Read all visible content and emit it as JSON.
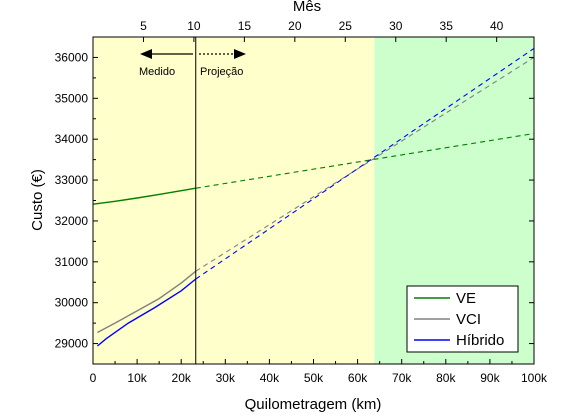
{
  "chart_data": {
    "type": "line",
    "xlabel": "Quilometragem (km)",
    "ylabel": "Custo (€)",
    "x2label": "Mês",
    "xlim": [
      0,
      100000
    ],
    "ylim": [
      28500,
      36500
    ],
    "x2lim": [
      0,
      43.7
    ],
    "xticks": [
      {
        "value": 0,
        "label": "0"
      },
      {
        "value": 10000,
        "label": "10k"
      },
      {
        "value": 20000,
        "label": "20k"
      },
      {
        "value": 30000,
        "label": "30k"
      },
      {
        "value": 40000,
        "label": "40k"
      },
      {
        "value": 50000,
        "label": "50k"
      },
      {
        "value": 60000,
        "label": "60k"
      },
      {
        "value": 70000,
        "label": "70k"
      },
      {
        "value": 80000,
        "label": "80k"
      },
      {
        "value": 90000,
        "label": "90k"
      },
      {
        "value": 100000,
        "label": "100k"
      }
    ],
    "yticks": [
      {
        "value": 29000,
        "label": "29000"
      },
      {
        "value": 30000,
        "label": "30000"
      },
      {
        "value": 31000,
        "label": "31000"
      },
      {
        "value": 32000,
        "label": "32000"
      },
      {
        "value": 33000,
        "label": "33000"
      },
      {
        "value": 34000,
        "label": "34000"
      },
      {
        "value": 35000,
        "label": "35000"
      },
      {
        "value": 36000,
        "label": "36000"
      }
    ],
    "x2ticks": [
      {
        "value": 5,
        "label": "5"
      },
      {
        "value": 10,
        "label": "10"
      },
      {
        "value": 15,
        "label": "15"
      },
      {
        "value": 20,
        "label": "20"
      },
      {
        "value": 25,
        "label": "25"
      },
      {
        "value": 30,
        "label": "30"
      },
      {
        "value": 35,
        "label": "35"
      },
      {
        "value": 40,
        "label": "40"
      }
    ],
    "regions": [
      {
        "x_from": 0,
        "x_to": 63800,
        "color": "#ffffcc"
      },
      {
        "x_from": 63800,
        "x_to": 100000,
        "color": "#ccffcc"
      }
    ],
    "divider_x": 23300,
    "annotations": {
      "measured": "Medido",
      "projection": "Projeção"
    },
    "series": [
      {
        "name": "VE",
        "color": "#008000",
        "measured": [
          [
            0,
            32410
          ],
          [
            5000,
            32480
          ],
          [
            10000,
            32560
          ],
          [
            15000,
            32650
          ],
          [
            20000,
            32740
          ],
          [
            23300,
            32800
          ]
        ],
        "projected": [
          [
            23300,
            32800
          ],
          [
            100000,
            34140
          ]
        ]
      },
      {
        "name": "VCI",
        "color": "#808080",
        "measured": [
          [
            1000,
            29270
          ],
          [
            5000,
            29500
          ],
          [
            10000,
            29800
          ],
          [
            15000,
            30100
          ],
          [
            20000,
            30480
          ],
          [
            23300,
            30770
          ]
        ],
        "projected": [
          [
            23300,
            30770
          ],
          [
            100000,
            36000
          ]
        ]
      },
      {
        "name": "Híbrido",
        "color": "#0000ff",
        "measured": [
          [
            1000,
            28940
          ],
          [
            3000,
            29120
          ],
          [
            8000,
            29500
          ],
          [
            14000,
            29880
          ],
          [
            20000,
            30290
          ],
          [
            23300,
            30580
          ]
        ],
        "projected": [
          [
            23300,
            30580
          ],
          [
            100000,
            36220
          ]
        ]
      }
    ],
    "legend_position": "bottom-right"
  }
}
